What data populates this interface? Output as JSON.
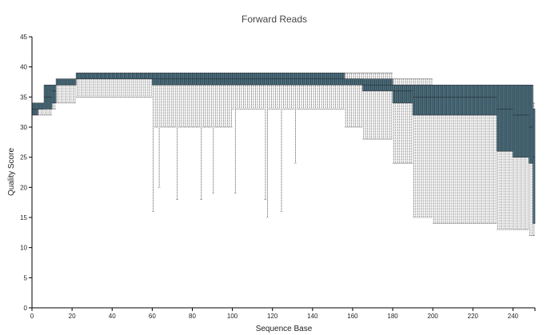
{
  "chart_data": {
    "type": "boxplot",
    "title": "Forward Reads",
    "xlabel": "Sequence Base",
    "ylabel": "Quality Score",
    "xlim": [
      0,
      251
    ],
    "ylim": [
      0,
      45
    ],
    "x_ticks": [
      "0",
      "20",
      "40",
      "60",
      "80",
      "100",
      "120",
      "140",
      "160",
      "180",
      "200",
      "220",
      "240"
    ],
    "y_ticks": [
      "0",
      "5",
      "10",
      "15",
      "20",
      "25",
      "30",
      "35",
      "40",
      "45"
    ],
    "colors": {
      "box": "#4b7080",
      "box_stroke": "#2b2f33",
      "whisker": "#333333",
      "median": "#1e2a30"
    },
    "runs_fields": [
      "from_base",
      "to_base",
      "min",
      "q1",
      "median",
      "q3",
      "max"
    ],
    "runs": [
      [
        1,
        3,
        32,
        32,
        33,
        34,
        34
      ],
      [
        4,
        6,
        32,
        33,
        33,
        34,
        34
      ],
      [
        7,
        10,
        32,
        33,
        35,
        37,
        37
      ],
      [
        11,
        12,
        33,
        34,
        36,
        37,
        37
      ],
      [
        13,
        22,
        34,
        37,
        37,
        38,
        38
      ],
      [
        23,
        60,
        35,
        38,
        38,
        39,
        39
      ],
      [
        61,
        100,
        30,
        37,
        38,
        39,
        39
      ],
      [
        101,
        156,
        33,
        37,
        38,
        39,
        39
      ],
      [
        157,
        165,
        30,
        37,
        38,
        38,
        39
      ],
      [
        166,
        180,
        28,
        36,
        37,
        38,
        39
      ],
      [
        181,
        190,
        24,
        34,
        36,
        37,
        38
      ],
      [
        191,
        200,
        15,
        32,
        35,
        37,
        38
      ],
      [
        201,
        232,
        14,
        32,
        35,
        37,
        37
      ],
      [
        233,
        240,
        13,
        26,
        33,
        37,
        37
      ],
      [
        241,
        248,
        13,
        25,
        32,
        37,
        37
      ],
      [
        249,
        250,
        12,
        24,
        30,
        37,
        37
      ],
      [
        251,
        251,
        12,
        14,
        25,
        33,
        34
      ]
    ],
    "min_overrides": {
      "61": 16,
      "64": 20,
      "66": 30,
      "73": 18,
      "85": 18,
      "91": 19,
      "102": 19,
      "117": 18,
      "118": 15,
      "125": 16,
      "132": 24,
      "194": 15,
      "195": 15
    }
  }
}
